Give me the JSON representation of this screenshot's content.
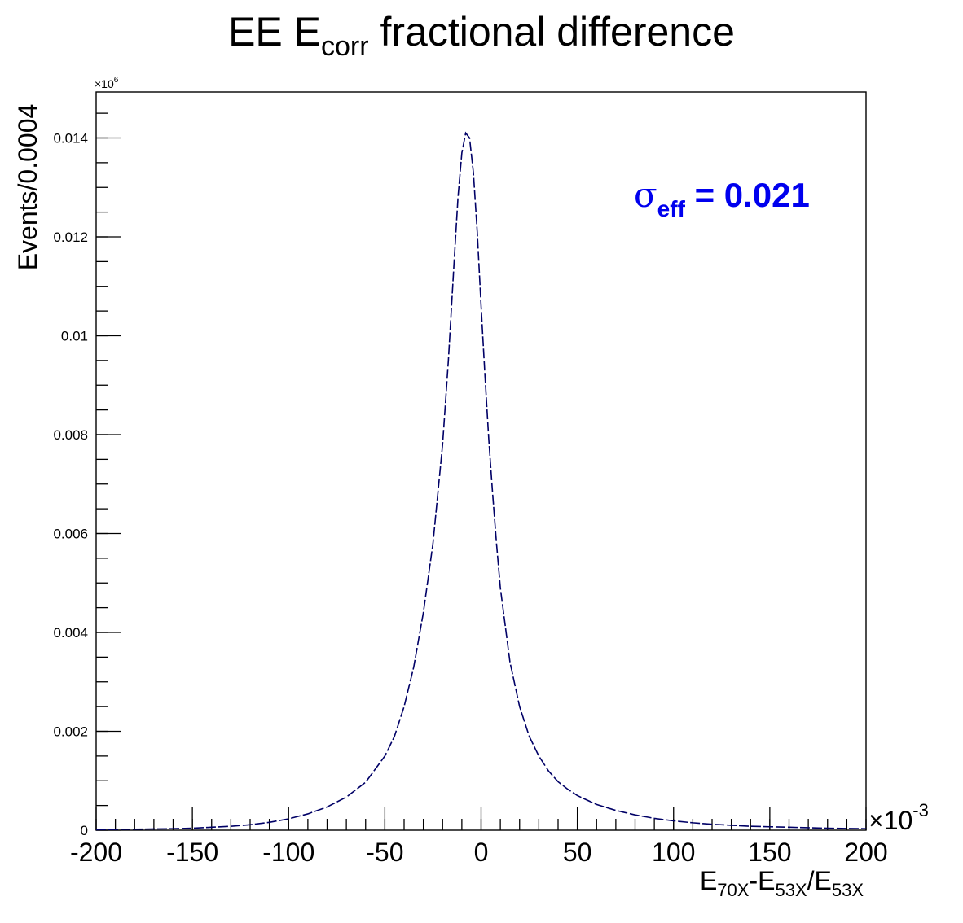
{
  "chart_data": {
    "type": "line",
    "title": {
      "pre": "EE E",
      "sub": "corr",
      "post": " fractional difference"
    },
    "xlabel": {
      "parts": [
        {
          "t": "E"
        },
        {
          "t": "70X",
          "sub": true
        },
        {
          "t": "-E"
        },
        {
          "t": "53X",
          "sub": true
        },
        {
          "t": "/E"
        },
        {
          "t": "53X",
          "sub": true
        }
      ]
    },
    "ylabel": "Events/0.0004",
    "x_multiplier": {
      "base": "×10",
      "exp": "-3"
    },
    "y_multiplier": {
      "base": "×10",
      "exp": "6"
    },
    "xlim": [
      -200,
      200
    ],
    "ylim": [
      0,
      0.01493
    ],
    "x_ticks": [
      -200,
      -150,
      -100,
      -50,
      0,
      50,
      100,
      150,
      200
    ],
    "x_tick_labels": [
      "-200",
      "-150",
      "-100",
      "-50",
      "0",
      "50",
      "100",
      "150",
      "200"
    ],
    "y_ticks": [
      0,
      0.002,
      0.004,
      0.006,
      0.008,
      0.01,
      0.012,
      0.014
    ],
    "y_tick_labels": [
      "0",
      "0.002",
      "0.004",
      "0.006",
      "0.008",
      "0.01",
      "0.012",
      "0.014"
    ],
    "grid": false,
    "series": [
      {
        "color": "#000066",
        "x": [
          -200,
          -180,
          -160,
          -150,
          -140,
          -130,
          -120,
          -110,
          -100,
          -90,
          -80,
          -70,
          -60,
          -50,
          -45,
          -40,
          -35,
          -30,
          -25,
          -20,
          -17,
          -14,
          -12,
          -10,
          -8,
          -6,
          -4,
          -2,
          0,
          2,
          4,
          6,
          8,
          10,
          15,
          20,
          25,
          30,
          35,
          40,
          45,
          50,
          60,
          70,
          80,
          90,
          100,
          110,
          120,
          130,
          140,
          150,
          160,
          170,
          180,
          200
        ],
        "y": [
          1e-05,
          2e-05,
          3e-05,
          4e-05,
          6e-05,
          8e-05,
          0.00011,
          0.00016,
          0.00023,
          0.00033,
          0.00047,
          0.00067,
          0.00097,
          0.0015,
          0.0019,
          0.0025,
          0.0033,
          0.0044,
          0.0058,
          0.0078,
          0.0095,
          0.0115,
          0.0128,
          0.0137,
          0.0141,
          0.014,
          0.0133,
          0.0121,
          0.0106,
          0.0092,
          0.0079,
          0.0068,
          0.0058,
          0.0049,
          0.0034,
          0.0025,
          0.0019,
          0.0015,
          0.0012,
          0.00098,
          0.00083,
          0.0007,
          0.00052,
          0.0004,
          0.00031,
          0.00024,
          0.00019,
          0.00015,
          0.00012,
          0.0001,
          8e-05,
          7e-05,
          6e-05,
          5e-05,
          4e-05,
          3e-05
        ]
      }
    ],
    "annotation": {
      "sym": "σ",
      "sub": "eff",
      "text": " = 0.021",
      "color": "#0000ee"
    }
  }
}
